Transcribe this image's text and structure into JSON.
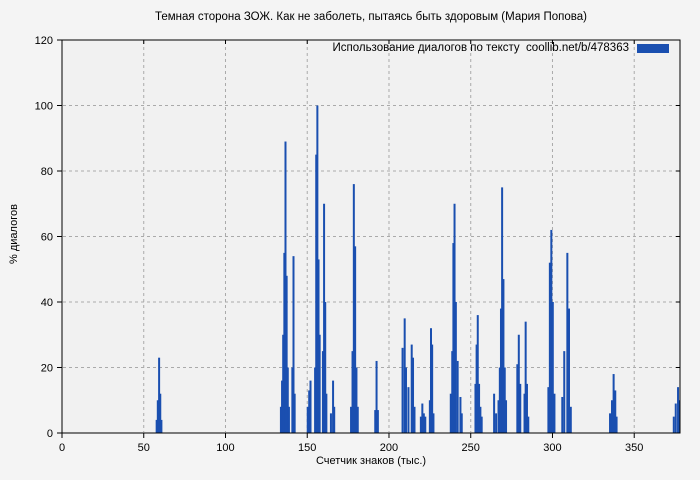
{
  "title": "Темная сторона ЗОЖ. Как не заболеть, пытаясь быть здоровым (Мария Попова)",
  "legend": {
    "label": "Использование диалогов по тексту  coollib.net/b/478363"
  },
  "colors": {
    "bar": "#1a4fb0",
    "background": "#f4f4f4",
    "plot_background": "#f1f1f1",
    "grid": "#aaaaaa",
    "axis": "#000000"
  },
  "chart_data": {
    "type": "bar",
    "title": "Темная сторона ЗОЖ. Как не заболеть, пытаясь быть здоровым (Мария Попова)",
    "xlabel": "Счетчик знаков (тыс.)",
    "ylabel": "% диалогов",
    "xlim": [
      0,
      378
    ],
    "ylim": [
      0,
      120
    ],
    "xticks": [
      0,
      50,
      100,
      150,
      200,
      250,
      300,
      350
    ],
    "yticks": [
      0,
      20,
      40,
      60,
      80,
      100,
      120
    ],
    "grid": true,
    "legend_position": "top-right",
    "series": [
      {
        "name": "Использование диалогов по тексту  coollib.net/b/478363",
        "points": [
          [
            57.9,
            4
          ],
          [
            58.6,
            10
          ],
          [
            59.4,
            23
          ],
          [
            60.1,
            12
          ],
          [
            60.8,
            4
          ],
          [
            133.9,
            8
          ],
          [
            134.6,
            16
          ],
          [
            135.3,
            30
          ],
          [
            136.0,
            55
          ],
          [
            136.7,
            89
          ],
          [
            137.4,
            48
          ],
          [
            138.1,
            20
          ],
          [
            138.8,
            8
          ],
          [
            140.9,
            20
          ],
          [
            141.6,
            54
          ],
          [
            142.3,
            12
          ],
          [
            150.3,
            8
          ],
          [
            151.2,
            13
          ],
          [
            152.0,
            16
          ],
          [
            154.8,
            20
          ],
          [
            155.5,
            85
          ],
          [
            156.2,
            100
          ],
          [
            156.9,
            53
          ],
          [
            157.6,
            30
          ],
          [
            159.6,
            25
          ],
          [
            160.3,
            70
          ],
          [
            161.0,
            40
          ],
          [
            161.7,
            12
          ],
          [
            164.5,
            6
          ],
          [
            165.8,
            16
          ],
          [
            166.5,
            8
          ],
          [
            176.8,
            8
          ],
          [
            177.7,
            25
          ],
          [
            178.5,
            76
          ],
          [
            179.3,
            57
          ],
          [
            180.1,
            20
          ],
          [
            180.9,
            8
          ],
          [
            191.6,
            7
          ],
          [
            192.4,
            22
          ],
          [
            193.2,
            7
          ],
          [
            208.3,
            26
          ],
          [
            209.6,
            35
          ],
          [
            210.4,
            20
          ],
          [
            211.9,
            14
          ],
          [
            213.9,
            27
          ],
          [
            214.7,
            23
          ],
          [
            215.6,
            8
          ],
          [
            219.5,
            5
          ],
          [
            220.4,
            9
          ],
          [
            221.3,
            6
          ],
          [
            222.2,
            5
          ],
          [
            225.0,
            10
          ],
          [
            225.7,
            32
          ],
          [
            226.4,
            27
          ],
          [
            227.2,
            6
          ],
          [
            237.8,
            12
          ],
          [
            238.7,
            25
          ],
          [
            239.4,
            58
          ],
          [
            240.1,
            70
          ],
          [
            240.9,
            40
          ],
          [
            242.0,
            22
          ],
          [
            243.7,
            11
          ],
          [
            244.5,
            6
          ],
          [
            252.9,
            15
          ],
          [
            253.6,
            27
          ],
          [
            254.3,
            36
          ],
          [
            255.1,
            15
          ],
          [
            255.9,
            8
          ],
          [
            256.7,
            5
          ],
          [
            264.3,
            12
          ],
          [
            265.5,
            6
          ],
          [
            267.0,
            10
          ],
          [
            267.8,
            20
          ],
          [
            268.5,
            38
          ],
          [
            269.2,
            75
          ],
          [
            270.0,
            47
          ],
          [
            270.8,
            20
          ],
          [
            271.6,
            10
          ],
          [
            278.5,
            21
          ],
          [
            279.4,
            30
          ],
          [
            280.3,
            15
          ],
          [
            282.9,
            12
          ],
          [
            283.6,
            34
          ],
          [
            284.4,
            15
          ],
          [
            285.2,
            5
          ],
          [
            297.5,
            14
          ],
          [
            298.4,
            52
          ],
          [
            299.3,
            62
          ],
          [
            300.2,
            40
          ],
          [
            301.2,
            12
          ],
          [
            306.0,
            11
          ],
          [
            307.2,
            25
          ],
          [
            309.1,
            55
          ],
          [
            310.1,
            38
          ],
          [
            311.2,
            8
          ],
          [
            335.2,
            6
          ],
          [
            336.4,
            10
          ],
          [
            337.4,
            18
          ],
          [
            338.4,
            13
          ],
          [
            339.2,
            5
          ],
          [
            374.2,
            5
          ],
          [
            375.4,
            9
          ],
          [
            376.8,
            14
          ],
          [
            377.4,
            10
          ]
        ]
      }
    ]
  }
}
